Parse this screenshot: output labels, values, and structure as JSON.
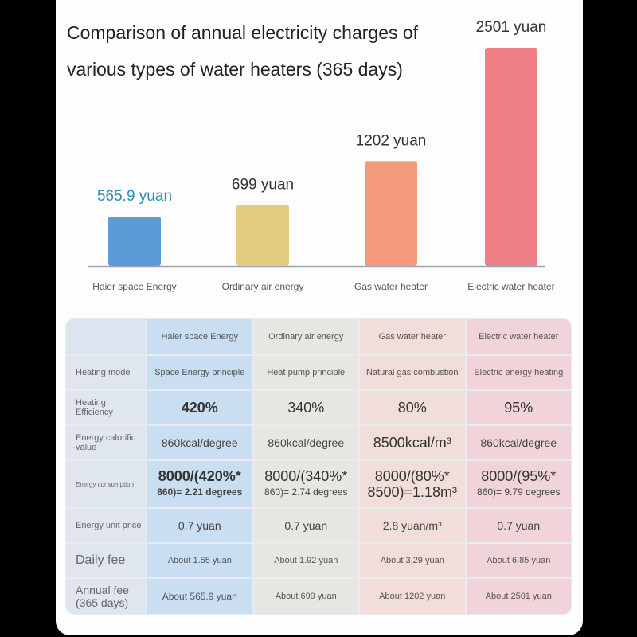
{
  "colors": {
    "bar_haier": "#5b9bd8",
    "bar_air": "#e3cc80",
    "bar_gas": "#f39a7a",
    "bar_electric": "#ef8088",
    "haier_label": "#2b8fae",
    "axis": "#9aa6b4"
  },
  "chart_data": {
    "type": "bar",
    "title": "Comparison of annual electricity charges of various types of water heaters (365 days)",
    "categories": [
      "Haier space Energy",
      "Ordinary air energy",
      "Gas water heater",
      "Electric water heater"
    ],
    "values": [
      565.9,
      699,
      1202,
      2501
    ],
    "value_labels": [
      "565.9 yuan",
      "699 yuan",
      "1202 yuan",
      "2501 yuan"
    ],
    "unit": "yuan",
    "xlabel": "",
    "ylabel": "",
    "ylim": [
      0,
      2501
    ]
  },
  "table": {
    "columns": [
      "Haier space Energy",
      "Ordinary air energy",
      "Gas water heater",
      "Electric water heater"
    ],
    "rows": [
      {
        "label": "Heating mode",
        "cells": [
          "Space Energy principle",
          "Heat pump principle",
          "Natural gas combustion",
          "Electric energy heating"
        ]
      },
      {
        "label": "Heating Efficiency",
        "cells": [
          "420%",
          "340%",
          "80%",
          "95%"
        ]
      },
      {
        "label": "Energy calorific value",
        "cells": [
          "860kcal/degree",
          "860kcal/degree",
          "8500kcal/m³",
          "860kcal/degree"
        ]
      },
      {
        "label": "Energy consumption",
        "cells": [
          {
            "main": "8000/(420%*",
            "sub": "860)= 2.21 degrees"
          },
          {
            "main": "8000/(340%*",
            "sub": "860)= 2.74 degrees"
          },
          {
            "main": "8000/(80%*",
            "sub": "8500)=1.18m³"
          },
          {
            "main": "8000/(95%*",
            "sub": "860)= 9.79 degrees"
          }
        ]
      },
      {
        "label": "Energy unit price",
        "cells": [
          "0.7 yuan",
          "0.7 yuan",
          "2.8 yuan/m³",
          "0.7 yuan"
        ]
      },
      {
        "label": "Daily fee",
        "cells": [
          "About 1.55 yuan",
          "About 1.92 yuan",
          "About 3.29 yuan",
          "About 6.85 yuan"
        ]
      },
      {
        "label": "Annual fee (365 days)",
        "cells": [
          "About 565.9 yuan",
          "About 699 yuan",
          "About 1202 yuan",
          "About 2501 yuan"
        ]
      }
    ]
  }
}
